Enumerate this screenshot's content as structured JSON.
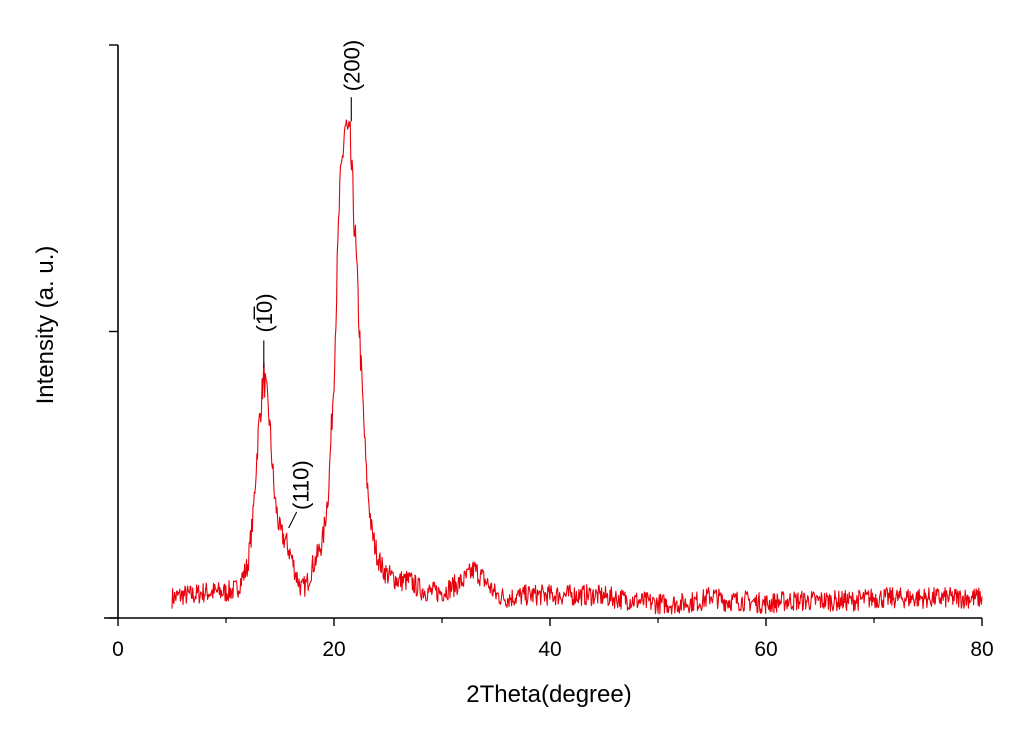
{
  "chart_data": {
    "type": "line",
    "xlabel": "2Theta(degree)",
    "ylabel": "Intensity (a. u.)",
    "xlim": [
      0,
      80
    ],
    "ylim": [
      0,
      2
    ],
    "x_ticks": [
      0,
      20,
      40,
      60,
      80
    ],
    "x_tick_labels": [
      "0",
      "20",
      "40",
      "60",
      "80"
    ],
    "y_ticks": [
      0,
      1,
      2
    ],
    "y_tick_labels": [
      "",
      "",
      ""
    ],
    "grid": false,
    "legend": "none",
    "series": [
      {
        "color": "#e8000b",
        "x": [
          5,
          6,
          7,
          8,
          9,
          10,
          11,
          12,
          12.5,
          13,
          13.5,
          14,
          14.5,
          15,
          15.5,
          16,
          16.5,
          17,
          17.5,
          18,
          18.5,
          19,
          19.5,
          20,
          20.5,
          21,
          21.5,
          22,
          22.5,
          23,
          23.5,
          24,
          24.5,
          25,
          26,
          27,
          28,
          29,
          30,
          31,
          32,
          33,
          34,
          35,
          36,
          38,
          40,
          42,
          44,
          46,
          48,
          50,
          52,
          54,
          55,
          56,
          58,
          60,
          62,
          64,
          66,
          68,
          70,
          72,
          74,
          76,
          78,
          80
        ],
        "y": [
          0.07,
          0.08,
          0.08,
          0.09,
          0.09,
          0.09,
          0.1,
          0.18,
          0.35,
          0.65,
          0.85,
          0.7,
          0.42,
          0.3,
          0.27,
          0.22,
          0.15,
          0.1,
          0.12,
          0.18,
          0.22,
          0.28,
          0.45,
          0.85,
          1.45,
          1.72,
          1.65,
          1.3,
          0.88,
          0.5,
          0.3,
          0.22,
          0.17,
          0.15,
          0.13,
          0.13,
          0.1,
          0.09,
          0.09,
          0.11,
          0.13,
          0.17,
          0.13,
          0.08,
          0.07,
          0.08,
          0.08,
          0.08,
          0.08,
          0.07,
          0.06,
          0.05,
          0.05,
          0.06,
          0.08,
          0.06,
          0.06,
          0.05,
          0.06,
          0.06,
          0.06,
          0.06,
          0.07,
          0.07,
          0.07,
          0.07,
          0.07,
          0.07
        ]
      }
    ],
    "annotations": [
      {
        "label": "(200)",
        "x": 21.6,
        "y": 1.72
      },
      {
        "label": "(1̅0)",
        "x": 13.5,
        "y": 0.85
      },
      {
        "label": "(110)",
        "x": 15.8,
        "y": 0.3
      }
    ]
  }
}
